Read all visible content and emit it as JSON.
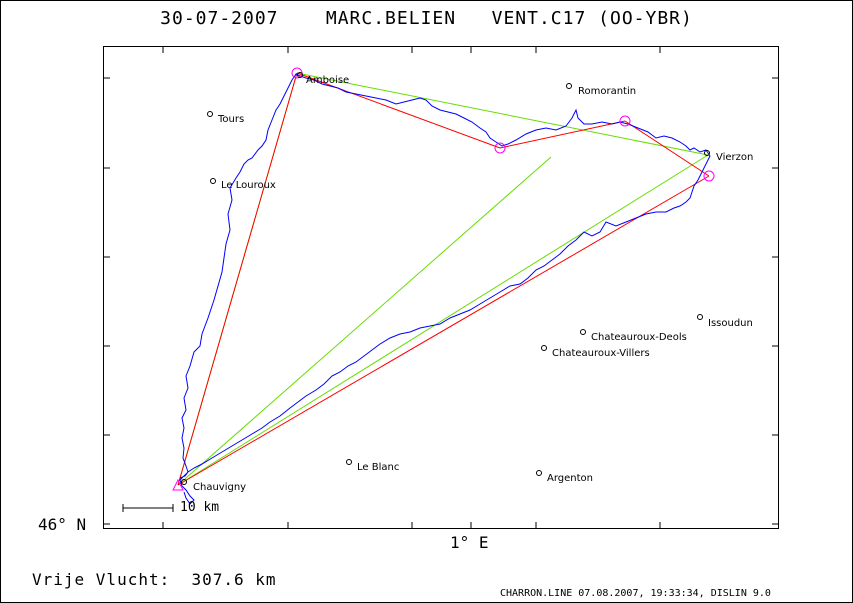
{
  "header": {
    "date": "30-07-2007",
    "pilot": "MARC.BELIEN",
    "glider": "VENT.C17 (OO-YBR)"
  },
  "axes": {
    "lat_label": "46° N",
    "lon_label": "1° E"
  },
  "scale_bar": {
    "label": "10 km"
  },
  "flight": {
    "summary": "Vrije Vlucht:  307.6 km"
  },
  "footer": {
    "text": "CHARRON.LINE 07.08.2007, 19:33:34, DISLIN 9.0"
  },
  "towns": [
    {
      "name": "Amboise"
    },
    {
      "name": "Tours"
    },
    {
      "name": "Le Louroux"
    },
    {
      "name": "Romorantin"
    },
    {
      "name": "Vierzon"
    },
    {
      "name": "Issoudun"
    },
    {
      "name": "Chateauroux-Deols"
    },
    {
      "name": "Chateauroux-Villers"
    },
    {
      "name": "Le Blanc"
    },
    {
      "name": "Argenton"
    },
    {
      "name": "Chauvigny"
    }
  ],
  "colors": {
    "track": "#0000ff",
    "task_red": "#ff0000",
    "task_green": "#66dd00",
    "turnpoint": "#ff00ff"
  }
}
